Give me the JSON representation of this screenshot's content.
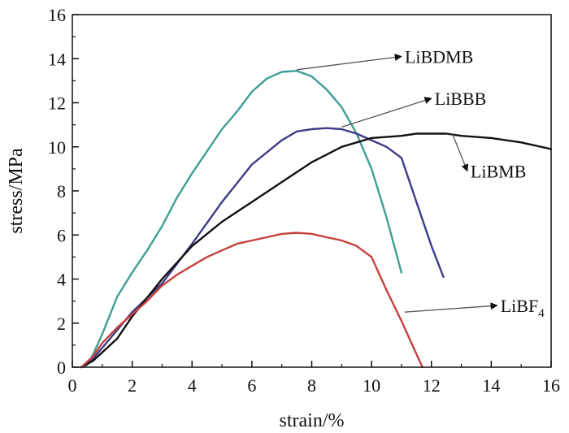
{
  "chart_data": {
    "type": "line",
    "title": "",
    "xlabel": "strain/%",
    "ylabel": "stress/MPa",
    "xlim": [
      0,
      16
    ],
    "ylim": [
      0,
      16
    ],
    "x_ticks": [
      "0",
      "2",
      "4",
      "6",
      "8",
      "10",
      "12",
      "14",
      "16"
    ],
    "y_ticks": [
      "0",
      "2",
      "4",
      "6",
      "8",
      "10",
      "12",
      "14",
      "16"
    ],
    "grid": false,
    "legend": "none",
    "series": [
      {
        "name": "LiBDMB",
        "color": "#3f9e93",
        "points": [
          [
            0.3,
            0
          ],
          [
            0.5,
            0.1
          ],
          [
            0.7,
            0.6
          ],
          [
            1,
            1.5
          ],
          [
            1.5,
            3.2
          ],
          [
            2,
            4.3
          ],
          [
            2.5,
            5.3
          ],
          [
            3,
            6.4
          ],
          [
            3.5,
            7.7
          ],
          [
            4,
            8.8
          ],
          [
            4.5,
            9.8
          ],
          [
            5,
            10.8
          ],
          [
            5.5,
            11.6
          ],
          [
            6,
            12.5
          ],
          [
            6.5,
            13.1
          ],
          [
            7,
            13.4
          ],
          [
            7.5,
            13.45
          ],
          [
            8,
            13.2
          ],
          [
            8.5,
            12.6
          ],
          [
            9,
            11.8
          ],
          [
            9.5,
            10.6
          ],
          [
            10,
            9
          ],
          [
            10.5,
            6.8
          ],
          [
            11,
            4.3
          ]
        ]
      },
      {
        "name": "LiBBB",
        "color": "#3d3b87",
        "points": [
          [
            0.3,
            0
          ],
          [
            0.7,
            0.4
          ],
          [
            1.2,
            1.2
          ],
          [
            2,
            2.5
          ],
          [
            3,
            3.8
          ],
          [
            4,
            5.6
          ],
          [
            5,
            7.5
          ],
          [
            6,
            9.2
          ],
          [
            7,
            10.3
          ],
          [
            7.5,
            10.7
          ],
          [
            8,
            10.8
          ],
          [
            8.5,
            10.85
          ],
          [
            9,
            10.8
          ],
          [
            9.5,
            10.6
          ],
          [
            10,
            10.3
          ],
          [
            10.5,
            10
          ],
          [
            11,
            9.5
          ],
          [
            11.5,
            7.5
          ],
          [
            12,
            5.5
          ],
          [
            12.4,
            4.1
          ]
        ]
      },
      {
        "name": "LiBMB",
        "color": "#111111",
        "points": [
          [
            0.3,
            0
          ],
          [
            0.7,
            0.3
          ],
          [
            1.5,
            1.3
          ],
          [
            2,
            2.3
          ],
          [
            3,
            4
          ],
          [
            4,
            5.5
          ],
          [
            5,
            6.6
          ],
          [
            6,
            7.5
          ],
          [
            7,
            8.4
          ],
          [
            8,
            9.3
          ],
          [
            9,
            10
          ],
          [
            10,
            10.4
          ],
          [
            11,
            10.5
          ],
          [
            11.5,
            10.6
          ],
          [
            12,
            10.6
          ],
          [
            12.5,
            10.6
          ],
          [
            13,
            10.5
          ],
          [
            14,
            10.4
          ],
          [
            15,
            10.2
          ],
          [
            16,
            9.9
          ]
        ]
      },
      {
        "name": "LiBF4",
        "color": "#c7413d",
        "points": [
          [
            0.3,
            0
          ],
          [
            0.7,
            0.5
          ],
          [
            1,
            1.1
          ],
          [
            1.5,
            1.8
          ],
          [
            2,
            2.4
          ],
          [
            2.5,
            3
          ],
          [
            3,
            3.7
          ],
          [
            3.5,
            4.2
          ],
          [
            4,
            4.6
          ],
          [
            4.5,
            5
          ],
          [
            5,
            5.3
          ],
          [
            5.5,
            5.6
          ],
          [
            6,
            5.75
          ],
          [
            6.5,
            5.9
          ],
          [
            7,
            6.05
          ],
          [
            7.5,
            6.1
          ],
          [
            8,
            6.05
          ],
          [
            8.5,
            5.9
          ],
          [
            9,
            5.75
          ],
          [
            9.5,
            5.5
          ],
          [
            10,
            5
          ],
          [
            10.5,
            3.5
          ],
          [
            11,
            2.1
          ],
          [
            11.5,
            0.6
          ],
          [
            11.7,
            0
          ]
        ]
      }
    ],
    "annotations": [
      {
        "label": "LiBDMB",
        "point": [
          7.5,
          13.5
        ],
        "arrow_to": [
          11,
          14.1
        ]
      },
      {
        "label": "LiBBB",
        "point": [
          9,
          10.9
        ],
        "arrow_to": [
          12,
          12.2
        ]
      },
      {
        "label": "LiBMB",
        "point": [
          12.7,
          10.6
        ],
        "arrow_to": [
          13.2,
          8.9
        ]
      },
      {
        "label": "LiBF",
        "subscript": "4",
        "point": [
          11.1,
          2.5
        ],
        "arrow_to": [
          14.2,
          2.8
        ]
      }
    ]
  }
}
